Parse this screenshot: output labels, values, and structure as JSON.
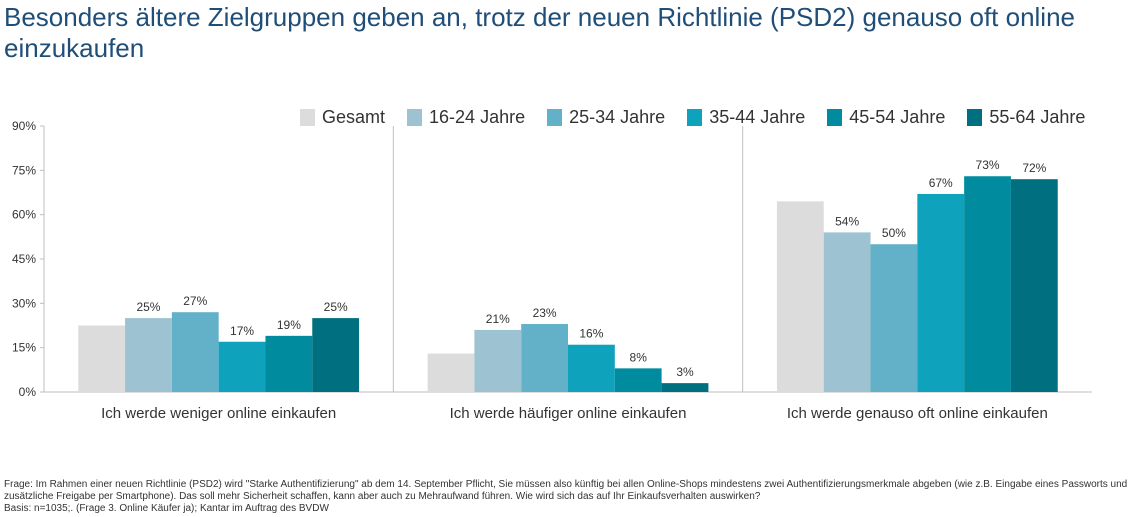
{
  "title": "Besonders ältere Zielgruppen geben an, trotz der neuen Richtlinie (PSD2) genauso oft online einzukaufen",
  "chart_data": {
    "type": "bar",
    "categories": [
      "Ich werde weniger online einkaufen",
      "Ich werde häufiger online einkaufen",
      "Ich werde genauso oft online einkaufen"
    ],
    "series": [
      {
        "name": "Gesamt",
        "color": "#dcdcdc",
        "values": [
          22.5,
          13,
          64.5
        ],
        "labels": [
          "",
          "",
          ""
        ]
      },
      {
        "name": "16-24 Jahre",
        "color": "#9dc3d2",
        "values": [
          25,
          21,
          54
        ],
        "labels": [
          "25%",
          "21%",
          "54%"
        ]
      },
      {
        "name": "25-34 Jahre",
        "color": "#62b1c8",
        "values": [
          27,
          23,
          50
        ],
        "labels": [
          "27%",
          "23%",
          "50%"
        ]
      },
      {
        "name": "35-44 Jahre",
        "color": "#0fa2bd",
        "values": [
          17,
          16,
          67
        ],
        "labels": [
          "17%",
          "16%",
          "67%"
        ]
      },
      {
        "name": "45-54 Jahre",
        "color": "#008c9e",
        "values": [
          19,
          8,
          73
        ],
        "labels": [
          "19%",
          "8%",
          "73%"
        ]
      },
      {
        "name": "55-64 Jahre",
        "color": "#006f7f",
        "values": [
          25,
          3,
          72
        ],
        "labels": [
          "25%",
          "3%",
          "72%"
        ]
      }
    ],
    "ylim": [
      0,
      90
    ],
    "yticks": [
      0,
      15,
      30,
      45,
      60,
      75,
      90
    ],
    "ytick_labels": [
      "0%",
      "15%",
      "30%",
      "45%",
      "60%",
      "75%",
      "90%"
    ],
    "legend_position": "top-right",
    "grid": false
  },
  "footer": {
    "question": "Frage: Im Rahmen einer neuen Richtlinie (PSD2) wird \"Starke Authentifizierung\" ab dem 14. September Pflicht, Sie müssen also künftig bei allen Online-Shops mindestens zwei Authentifizierungsmerkmale abgeben (wie z.B. Eingabe eines Passworts und zusätzliche Freigabe per Smartphone). Das soll mehr Sicherheit schaffen, kann aber auch zu Mehraufwand führen. Wie wird sich das auf Ihr Einkaufsverhalten auswirken?",
    "basis": "Basis: n=1035;. (Frage 3. Online Käufer ja); Kantar im Auftrag des BVDW"
  }
}
